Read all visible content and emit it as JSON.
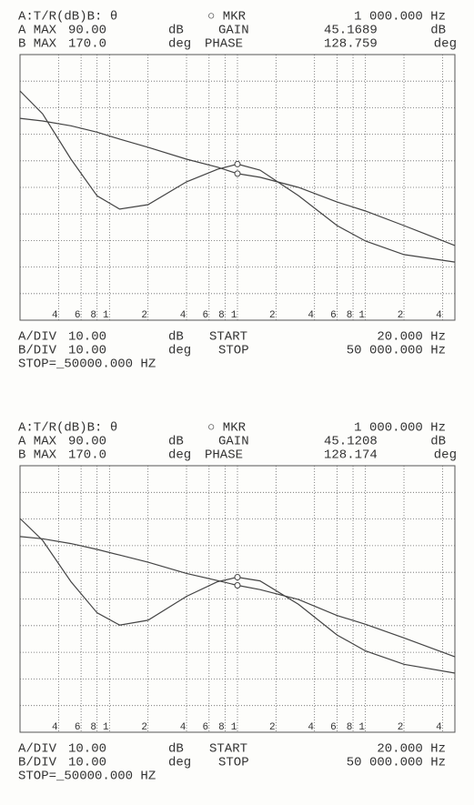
{
  "chart_data": [
    {
      "type": "line",
      "x_scale": "log",
      "xlim": [
        20,
        50000
      ],
      "ylim": [
        -10,
        90
      ],
      "y2lim": [
        70,
        170
      ],
      "channel": "A:T/R(dB)B: θ",
      "marker": "○ MKR",
      "marker_freq": "1 000.000 Hz",
      "a_max_label": "A MAX",
      "a_max": "90.00",
      "a_unit": "dB",
      "gain_label": "GAIN",
      "gain": "45.1689",
      "gain_unit": "dB",
      "b_max_label": "B MAX",
      "b_max": "170.0",
      "b_unit": "deg",
      "phase_label": "PHASE",
      "phase": "128.759",
      "phase_unit": "deg",
      "a_div_label": "A/DIV",
      "a_div": "10.00",
      "a_div_unit": "dB",
      "start_label": "START",
      "start": "20.000 Hz",
      "b_div_label": "B/DIV",
      "b_div": "10.00",
      "b_div_unit": "deg",
      "stop_label": "STOP",
      "stop": "50 000.000 Hz",
      "stop_cmd": "STOP=_50000.000 HZ",
      "xticks": [
        {
          "value": 40,
          "label": "4"
        },
        {
          "value": 60,
          "label": "6"
        },
        {
          "value": 80,
          "label": "8"
        },
        {
          "value": 100,
          "label": "1"
        },
        {
          "value": 200,
          "label": "2"
        },
        {
          "value": 400,
          "label": "4"
        },
        {
          "value": 600,
          "label": "6"
        },
        {
          "value": 800,
          "label": "8"
        },
        {
          "value": 1000,
          "label": "1"
        },
        {
          "value": 2000,
          "label": "2"
        },
        {
          "value": 4000,
          "label": "4"
        },
        {
          "value": 6000,
          "label": "6"
        },
        {
          "value": 8000,
          "label": "8"
        },
        {
          "value": 10000,
          "label": "1"
        },
        {
          "value": 20000,
          "label": "2"
        },
        {
          "value": 40000,
          "label": "4"
        }
      ],
      "x": [
        20,
        30,
        50,
        80,
        120,
        200,
        400,
        700,
        1000,
        1500,
        3000,
        6000,
        10000,
        20000,
        50000
      ],
      "marker_x": 1000,
      "series": [
        {
          "color": "#444444",
          "values": [
            66.0,
            65.0,
            63.2,
            60.8,
            58.2,
            55.1,
            50.6,
            47.6,
            45.17,
            43.8,
            40.0,
            34.5,
            31.1,
            25.6,
            18.1
          ]
        },
        {
          "color": "#444444",
          "axis": "y2",
          "values": [
            156.3,
            147.7,
            130.6,
            116.8,
            111.8,
            113.5,
            122.1,
            126.8,
            128.76,
            126.5,
            116.9,
            105.6,
            99.8,
            94.7,
            91.9
          ]
        }
      ]
    },
    {
      "type": "line",
      "x_scale": "log",
      "xlim": [
        20,
        50000
      ],
      "ylim": [
        -10,
        90
      ],
      "y2lim": [
        70,
        170
      ],
      "channel": "A:T/R(dB)B: θ",
      "marker": "○ MKR",
      "marker_freq": "1 000.000 Hz",
      "a_max_label": "A MAX",
      "a_max": "90.00",
      "a_unit": "dB",
      "gain_label": "GAIN",
      "gain": "45.1208",
      "gain_unit": "dB",
      "b_max_label": "B MAX",
      "b_max": "170.0",
      "b_unit": "deg",
      "phase_label": "PHASE",
      "phase": "128.174",
      "phase_unit": "deg",
      "a_div_label": "A/DIV",
      "a_div": "10.00",
      "a_div_unit": "dB",
      "start_label": "START",
      "start": "20.000 Hz",
      "b_div_label": "B/DIV",
      "b_div": "10.00",
      "b_div_unit": "deg",
      "stop_label": "STOP",
      "stop": "50 000.000 Hz",
      "stop_cmd": "STOP=_50000.000 HZ",
      "xticks": [
        {
          "value": 40,
          "label": "4"
        },
        {
          "value": 60,
          "label": "6"
        },
        {
          "value": 80,
          "label": "8"
        },
        {
          "value": 100,
          "label": "1"
        },
        {
          "value": 200,
          "label": "2"
        },
        {
          "value": 400,
          "label": "4"
        },
        {
          "value": 600,
          "label": "6"
        },
        {
          "value": 800,
          "label": "8"
        },
        {
          "value": 1000,
          "label": "1"
        },
        {
          "value": 2000,
          "label": "2"
        },
        {
          "value": 4000,
          "label": "4"
        },
        {
          "value": 6000,
          "label": "6"
        },
        {
          "value": 8000,
          "label": "8"
        },
        {
          "value": 10000,
          "label": "1"
        },
        {
          "value": 20000,
          "label": "2"
        },
        {
          "value": 40000,
          "label": "4"
        }
      ],
      "x": [
        20,
        30,
        50,
        80,
        120,
        200,
        400,
        700,
        1000,
        1500,
        3000,
        6000,
        10000,
        20000,
        50000
      ],
      "marker_x": 1000,
      "series": [
        {
          "color": "#444444",
          "values": [
            63.4,
            62.6,
            60.8,
            58.6,
            56.5,
            53.8,
            49.6,
            46.9,
            45.12,
            43.5,
            39.8,
            33.8,
            30.5,
            25.4,
            18.3
          ]
        },
        {
          "color": "#444444",
          "axis": "y2",
          "values": [
            150.2,
            142.0,
            126.5,
            114.8,
            110.2,
            112.0,
            121.0,
            126.5,
            128.17,
            126.8,
            118.0,
            106.5,
            100.5,
            95.5,
            92.2
          ]
        }
      ]
    }
  ]
}
